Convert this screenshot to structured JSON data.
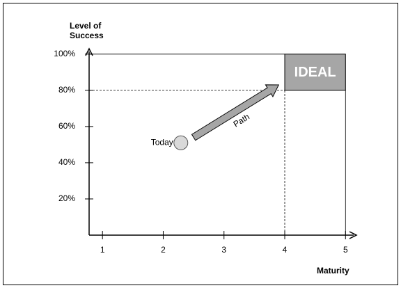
{
  "chart_data": {
    "type": "scatter",
    "ylabel": "Level of Success",
    "xlabel": "Maturity",
    "xlim": [
      0.78,
      5.18
    ],
    "xticks": [
      1,
      2,
      3,
      4,
      5
    ],
    "ylim": [
      0,
      103
    ],
    "yticks": [
      {
        "value": 20,
        "label": "20%"
      },
      {
        "value": 40,
        "label": "40%"
      },
      {
        "value": 60,
        "label": "60%"
      },
      {
        "value": 80,
        "label": "80%"
      },
      {
        "value": 100,
        "label": "100%"
      }
    ],
    "series": [
      {
        "name": "Today",
        "color": "#d9d9d9",
        "x": [
          2.29
        ],
        "values": [
          51
        ]
      }
    ],
    "path": {
      "label": "Path",
      "color": "#a6a6a6",
      "x": [
        2.5,
        3.9
      ],
      "y": [
        54,
        83
      ]
    },
    "region": {
      "label": "IDEAL",
      "color": "#a6a6a6",
      "x": [
        4,
        5
      ],
      "y": [
        80,
        100
      ]
    }
  }
}
